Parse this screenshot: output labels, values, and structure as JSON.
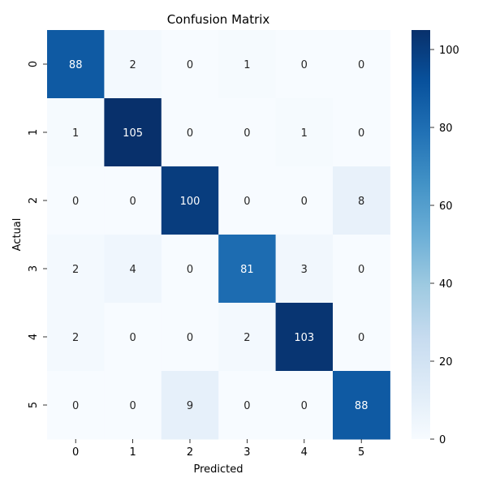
{
  "chart_data": {
    "type": "heatmap",
    "title": "Confusion Matrix",
    "xlabel": "Predicted",
    "ylabel": "Actual",
    "x_categories": [
      "0",
      "1",
      "2",
      "3",
      "4",
      "5"
    ],
    "y_categories": [
      "0",
      "1",
      "2",
      "3",
      "4",
      "5"
    ],
    "values": [
      [
        88,
        2,
        0,
        1,
        0,
        0
      ],
      [
        1,
        105,
        0,
        0,
        1,
        0
      ],
      [
        0,
        0,
        100,
        0,
        0,
        8
      ],
      [
        2,
        4,
        0,
        81,
        3,
        0
      ],
      [
        2,
        0,
        0,
        2,
        103,
        0
      ],
      [
        0,
        0,
        9,
        0,
        0,
        88
      ]
    ],
    "colorbar": {
      "range": [
        0,
        105
      ],
      "ticks": [
        "0",
        "20",
        "40",
        "60",
        "80",
        "100"
      ],
      "colormap": "Blues"
    },
    "annotations": true
  }
}
